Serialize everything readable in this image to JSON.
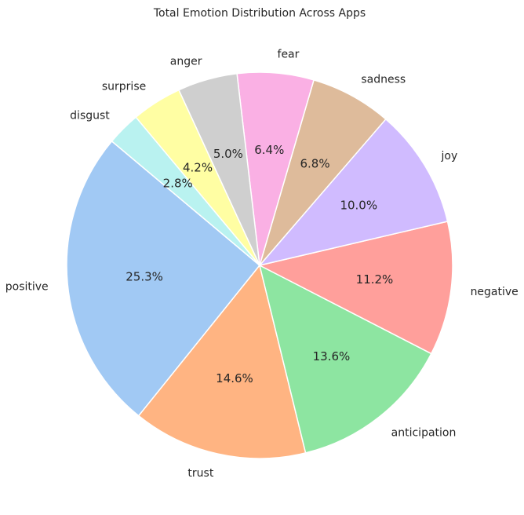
{
  "chart_data": {
    "type": "pie",
    "title": "Total Emotion Distribution Across Apps",
    "categories": [
      "positive",
      "trust",
      "anticipation",
      "negative",
      "joy",
      "sadness",
      "fear",
      "anger",
      "surprise",
      "disgust"
    ],
    "values": [
      25.3,
      14.6,
      13.6,
      11.2,
      10.0,
      6.8,
      6.4,
      5.0,
      4.2,
      2.8
    ],
    "percent_labels": [
      "25.3%",
      "14.6%",
      "13.6%",
      "11.2%",
      "10.0%",
      "6.8%",
      "6.4%",
      "5.0%",
      "4.2%",
      "2.8%"
    ],
    "colors": [
      "#a1c9f4",
      "#ffb482",
      "#8de5a1",
      "#ff9f9b",
      "#d0bbff",
      "#debb9b",
      "#fab0e4",
      "#cfcfcf",
      "#fffea3",
      "#b9f2f0"
    ],
    "start_angle_deg": 140,
    "direction": "counterclockwise",
    "legend": "none"
  }
}
